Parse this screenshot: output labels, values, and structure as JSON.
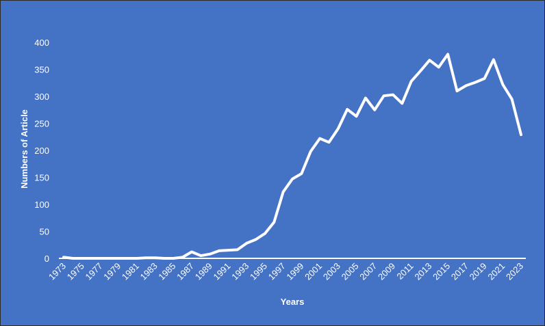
{
  "chart_data": {
    "type": "line",
    "title": "",
    "xlabel": "Years",
    "ylabel": "Numbers of Article",
    "ylim": [
      0,
      400
    ],
    "yticks": [
      0,
      50,
      100,
      150,
      200,
      250,
      300,
      350,
      400
    ],
    "grid": false,
    "legend": "none",
    "x": [
      1973,
      1974,
      1975,
      1976,
      1977,
      1978,
      1979,
      1980,
      1981,
      1982,
      1983,
      1984,
      1985,
      1986,
      1987,
      1988,
      1989,
      1990,
      1991,
      1992,
      1993,
      1994,
      1995,
      1996,
      1997,
      1998,
      1999,
      2000,
      2001,
      2002,
      2003,
      2004,
      2005,
      2006,
      2007,
      2008,
      2009,
      2010,
      2011,
      2012,
      2013,
      2014,
      2015,
      2016,
      2017,
      2018,
      2019,
      2020,
      2021,
      2022,
      2023
    ],
    "xtick_labels": [
      "1973",
      "1975",
      "1977",
      "1979",
      "1981",
      "1983",
      "1985",
      "1987",
      "1989",
      "1991",
      "1993",
      "1995",
      "1997",
      "1999",
      "2001",
      "2003",
      "2005",
      "2007",
      "2009",
      "2011",
      "2013",
      "2015",
      "2017",
      "2019",
      "2021",
      "2023"
    ],
    "series": [
      {
        "values": [
          2,
          0,
          0,
          0,
          0,
          0,
          0,
          0,
          0,
          1,
          1,
          0,
          0,
          2,
          12,
          5,
          8,
          14,
          15,
          16,
          28,
          35,
          46,
          67,
          123,
          147,
          157,
          198,
          222,
          215,
          240,
          276,
          263,
          297,
          275,
          301,
          303,
          287,
          328,
          347,
          367,
          354,
          378,
          310,
          320,
          326,
          333,
          368,
          322,
          295,
          229
        ]
      }
    ],
    "colors": {
      "background": "#4472C4",
      "line": "#ffffff",
      "text": "#ffffff"
    }
  }
}
